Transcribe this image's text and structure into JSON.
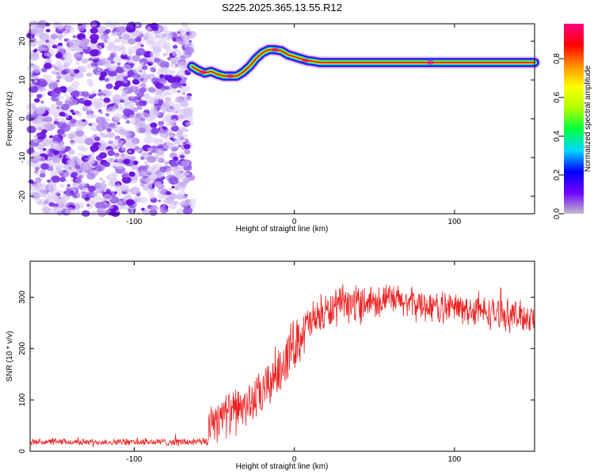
{
  "title": "S225.2025.365.13.55.R12",
  "chart_data": [
    {
      "type": "heatmap",
      "name": "spectrogram",
      "xlabel": "Height of straight line (km)",
      "ylabel": "Frequency (Hz)",
      "xlim": [
        -165,
        150
      ],
      "ylim": [
        -24.5,
        24.5
      ],
      "xticks": [
        -100,
        0,
        100
      ],
      "yticks": [
        -20,
        -10,
        0,
        10,
        20
      ],
      "noise_region_km": [
        -165,
        -64
      ],
      "trace": {
        "x": [
          -64,
          -60,
          -56,
          -52,
          -48,
          -44,
          -40,
          -36,
          -32,
          -28,
          -24,
          -20,
          -16,
          -12,
          -8,
          -4,
          0,
          4,
          8,
          12,
          16,
          20,
          40,
          60,
          80,
          85,
          90,
          120,
          150
        ],
        "y": [
          13.5,
          12.5,
          11.8,
          12.2,
          11.5,
          11.0,
          11.0,
          11.0,
          12.0,
          13.5,
          15.5,
          17.0,
          17.8,
          17.8,
          17.5,
          16.5,
          16.0,
          15.5,
          15.0,
          14.8,
          14.5,
          14.5,
          14.5,
          14.5,
          14.5,
          14.5,
          14.5,
          14.5,
          14.5
        ]
      },
      "colorbar": {
        "label": "Normalized spectral amplitude",
        "ticks": [
          0.0,
          0.2,
          0.4,
          0.6,
          0.8
        ],
        "range": [
          0,
          0.98
        ],
        "colors": [
          "#c0bdc8",
          "#7000ff",
          "#0000ff",
          "#00d8ff",
          "#00ff40",
          "#b0ff00",
          "#ffff00",
          "#ff9000",
          "#ff0000",
          "#ff0080"
        ]
      }
    },
    {
      "type": "line",
      "name": "snr",
      "xlabel": "Height of straight line (km)",
      "ylabel": "SNR (10 * v/v)",
      "xlim": [
        -165,
        150
      ],
      "ylim": [
        0,
        370
      ],
      "xticks": [
        -100,
        0,
        100
      ],
      "yticks": [
        0,
        100,
        200,
        300
      ],
      "color": "#ee2222",
      "envelope": {
        "x": [
          -165,
          -120,
          -54,
          -53,
          -45,
          -40,
          -30,
          -20,
          -10,
          0,
          10,
          20,
          30,
          40,
          50,
          60,
          70,
          80,
          90,
          100,
          110,
          120,
          130,
          140,
          150
        ],
        "mean": [
          18,
          18,
          18,
          60,
          70,
          75,
          90,
          110,
          160,
          210,
          250,
          270,
          285,
          290,
          295,
          295,
          290,
          285,
          280,
          280,
          275,
          270,
          268,
          262,
          262
        ],
        "spread": [
          6,
          6,
          8,
          45,
          45,
          40,
          40,
          45,
          50,
          50,
          40,
          35,
          35,
          35,
          30,
          30,
          30,
          30,
          30,
          30,
          30,
          30,
          30,
          30,
          30
        ]
      },
      "samples": 1200
    }
  ]
}
